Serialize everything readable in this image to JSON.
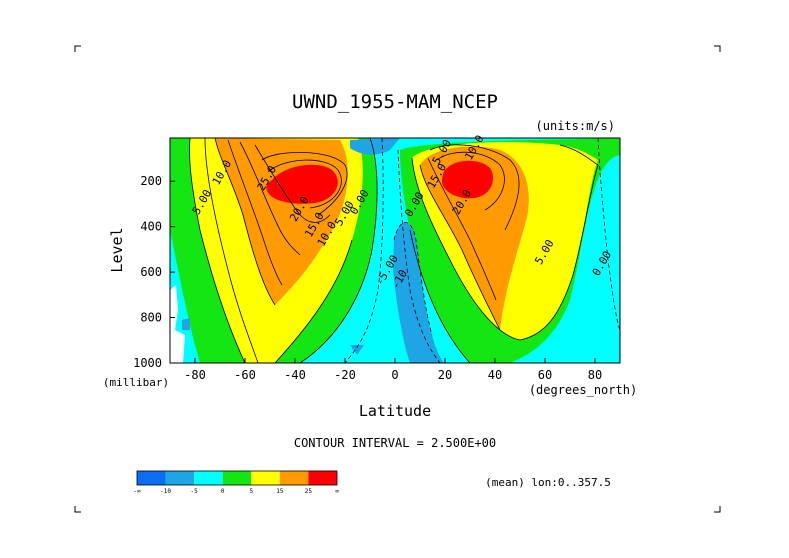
{
  "chart_data": {
    "type": "heatmap",
    "subtype": "filled-contour",
    "title": "UWND_1955-MAM_NCEP",
    "units_label": "(units:m/s)",
    "xlabel": "Latitude",
    "xunits": "(degrees_north)",
    "ylabel": "Level",
    "yunits": "(millibar)",
    "xlim": [
      -90,
      90
    ],
    "ylim": [
      1000,
      10
    ],
    "y_reversed": true,
    "x_ticks": [
      -80,
      -60,
      -40,
      -20,
      0,
      20,
      40,
      60,
      80
    ],
    "y_ticks": [
      200,
      400,
      600,
      800,
      1000
    ],
    "contour_interval_text": "CONTOUR INTERVAL = 2.500E+00",
    "mean_note": "(mean) lon:0..357.5",
    "colorbar": {
      "colors": [
        "#0a6ef0",
        "#1ea5e6",
        "#00ffff",
        "#14e614",
        "#ffff00",
        "#ff9a00",
        "#ff0000"
      ],
      "labels": [
        "-∞",
        "-10",
        "-5",
        "0",
        "5",
        "15",
        "25",
        "∞"
      ]
    },
    "contour_labels": [
      {
        "text": "10.0",
        "lat": -68,
        "lev": 170
      },
      {
        "text": "5.00",
        "lat": -76,
        "lev": 300
      },
      {
        "text": "25.0",
        "lat": -50,
        "lev": 195
      },
      {
        "text": "20.0",
        "lat": -37,
        "lev": 330
      },
      {
        "text": "15.0",
        "lat": -31,
        "lev": 400
      },
      {
        "text": "10.0",
        "lat": -26,
        "lev": 440
      },
      {
        "text": "5.00",
        "lat": -19,
        "lev": 350
      },
      {
        "text": "0.00",
        "lat": -13,
        "lev": 300
      },
      {
        "text": "-5.00",
        "lat": -2,
        "lev": 600
      },
      {
        "text": "-10",
        "lat": 3,
        "lev": 640
      },
      {
        "text": "0.00",
        "lat": 9,
        "lev": 310
      },
      {
        "text": "5.00",
        "lat": 20,
        "lev": 80
      },
      {
        "text": "10.0",
        "lat": 33,
        "lev": 60
      },
      {
        "text": "15.0",
        "lat": 18,
        "lev": 185
      },
      {
        "text": "20.0",
        "lat": 28,
        "lev": 300
      },
      {
        "text": "5.00",
        "lat": 61,
        "lev": 520
      },
      {
        "text": "0.00",
        "lat": 84,
        "lev": 570
      }
    ]
  }
}
